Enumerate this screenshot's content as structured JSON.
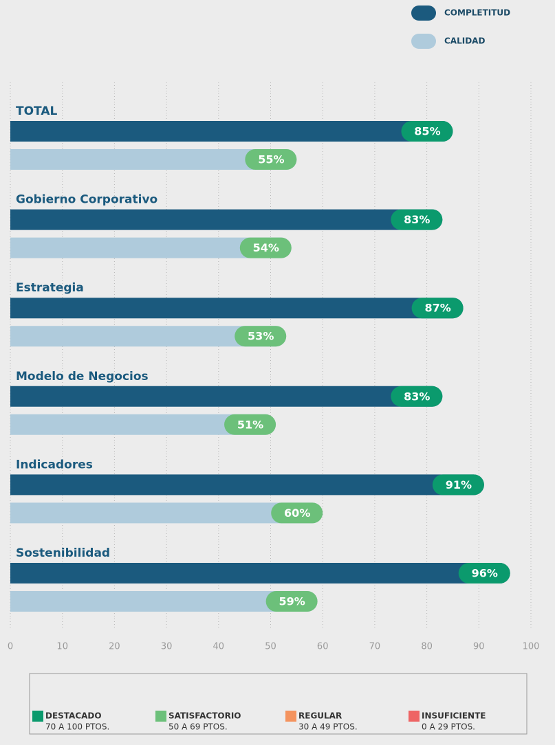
{
  "chart_data": {
    "type": "bar",
    "orientation": "horizontal",
    "categories": [
      "TOTAL",
      "Gobierno Corporativo",
      "Estrategia",
      "Modelo de Negocios",
      "Indicadores",
      "Sostenibilidad"
    ],
    "series": [
      {
        "name": "COMPLETITUD",
        "color": "#1b5a7e",
        "label_color": "#0b9a6d",
        "values": [
          85,
          83,
          87,
          83,
          91,
          96
        ],
        "value_labels": [
          "85%",
          "83%",
          "87%",
          "83%",
          "91%",
          "96%"
        ]
      },
      {
        "name": "CALIDAD",
        "color": "#afcbdc",
        "label_color": "#6cc07a",
        "values": [
          55,
          54,
          53,
          51,
          60,
          59
        ],
        "value_labels": [
          "55%",
          "54%",
          "53%",
          "51%",
          "60%",
          "59%"
        ]
      }
    ],
    "xlim": [
      0,
      100
    ],
    "xticks": [
      0,
      10,
      20,
      30,
      40,
      50,
      60,
      70,
      80,
      90,
      100
    ],
    "grid": true,
    "legend": "top-right",
    "ratings": [
      {
        "name": "DESTACADO",
        "range": "70 A 100 PTOS.",
        "color": "#0b9a6d"
      },
      {
        "name": "SATISFACTORIO",
        "range": "50 A 69 PTOS.",
        "color": "#6cc07a"
      },
      {
        "name": "REGULAR",
        "range": "30 A 49 PTOS.",
        "color": "#f4935e"
      },
      {
        "name": "INSUFICIENTE",
        "range": "0 A 29 PTOS.",
        "color": "#ee6464"
      }
    ]
  }
}
